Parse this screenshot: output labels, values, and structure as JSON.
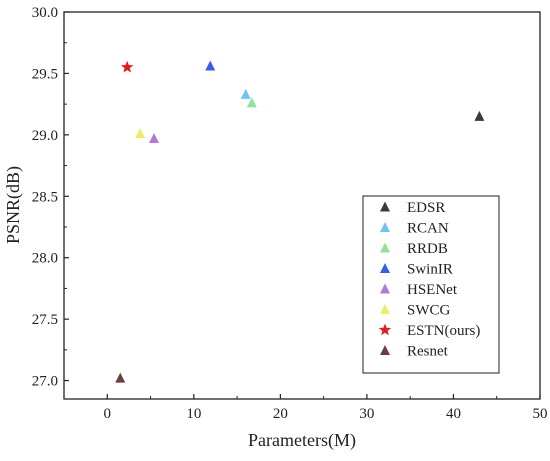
{
  "chart_data": {
    "type": "scatter",
    "title": "",
    "xlabel": "Parameters(M)",
    "ylabel": "PSNR(dB)",
    "xlim": [
      -5,
      50
    ],
    "ylim": [
      26.85,
      30.0
    ],
    "xticks": [
      0,
      10,
      20,
      30,
      40,
      50
    ],
    "yticks": [
      27.0,
      27.5,
      28.0,
      28.5,
      29.0,
      29.5,
      30.0
    ],
    "xtick_labels": [
      "0",
      "10",
      "20",
      "30",
      "40",
      "50"
    ],
    "ytick_labels": [
      "27.0",
      "27.5",
      "28.0",
      "28.5",
      "29.0",
      "29.5",
      "30.0"
    ],
    "grid": false,
    "legend_position": "bottom-right",
    "series": [
      {
        "name": "EDSR",
        "marker": "triangle",
        "color": "#3a3a3a",
        "x": [
          43.0
        ],
        "y": [
          29.15
        ]
      },
      {
        "name": "RCAN",
        "marker": "triangle",
        "color": "#6ec6f0",
        "x": [
          16.0
        ],
        "y": [
          29.33
        ]
      },
      {
        "name": "RRDB",
        "marker": "triangle",
        "color": "#8fe39a",
        "x": [
          16.7
        ],
        "y": [
          29.26
        ]
      },
      {
        "name": "SwinIR",
        "marker": "triangle",
        "color": "#3a5ee0",
        "x": [
          11.9
        ],
        "y": [
          29.56
        ]
      },
      {
        "name": "HSENet",
        "marker": "triangle",
        "color": "#b07ad8",
        "x": [
          5.4
        ],
        "y": [
          28.97
        ]
      },
      {
        "name": "SWCG",
        "marker": "triangle",
        "color": "#ecec6a",
        "x": [
          3.8
        ],
        "y": [
          29.01
        ]
      },
      {
        "name": "ESTN(ours)",
        "marker": "star",
        "color": "#e02020",
        "x": [
          2.3
        ],
        "y": [
          29.55
        ]
      },
      {
        "name": "Resnet",
        "marker": "triangle",
        "color": "#6b3f3f",
        "x": [
          1.5
        ],
        "y": [
          27.02
        ]
      }
    ]
  }
}
